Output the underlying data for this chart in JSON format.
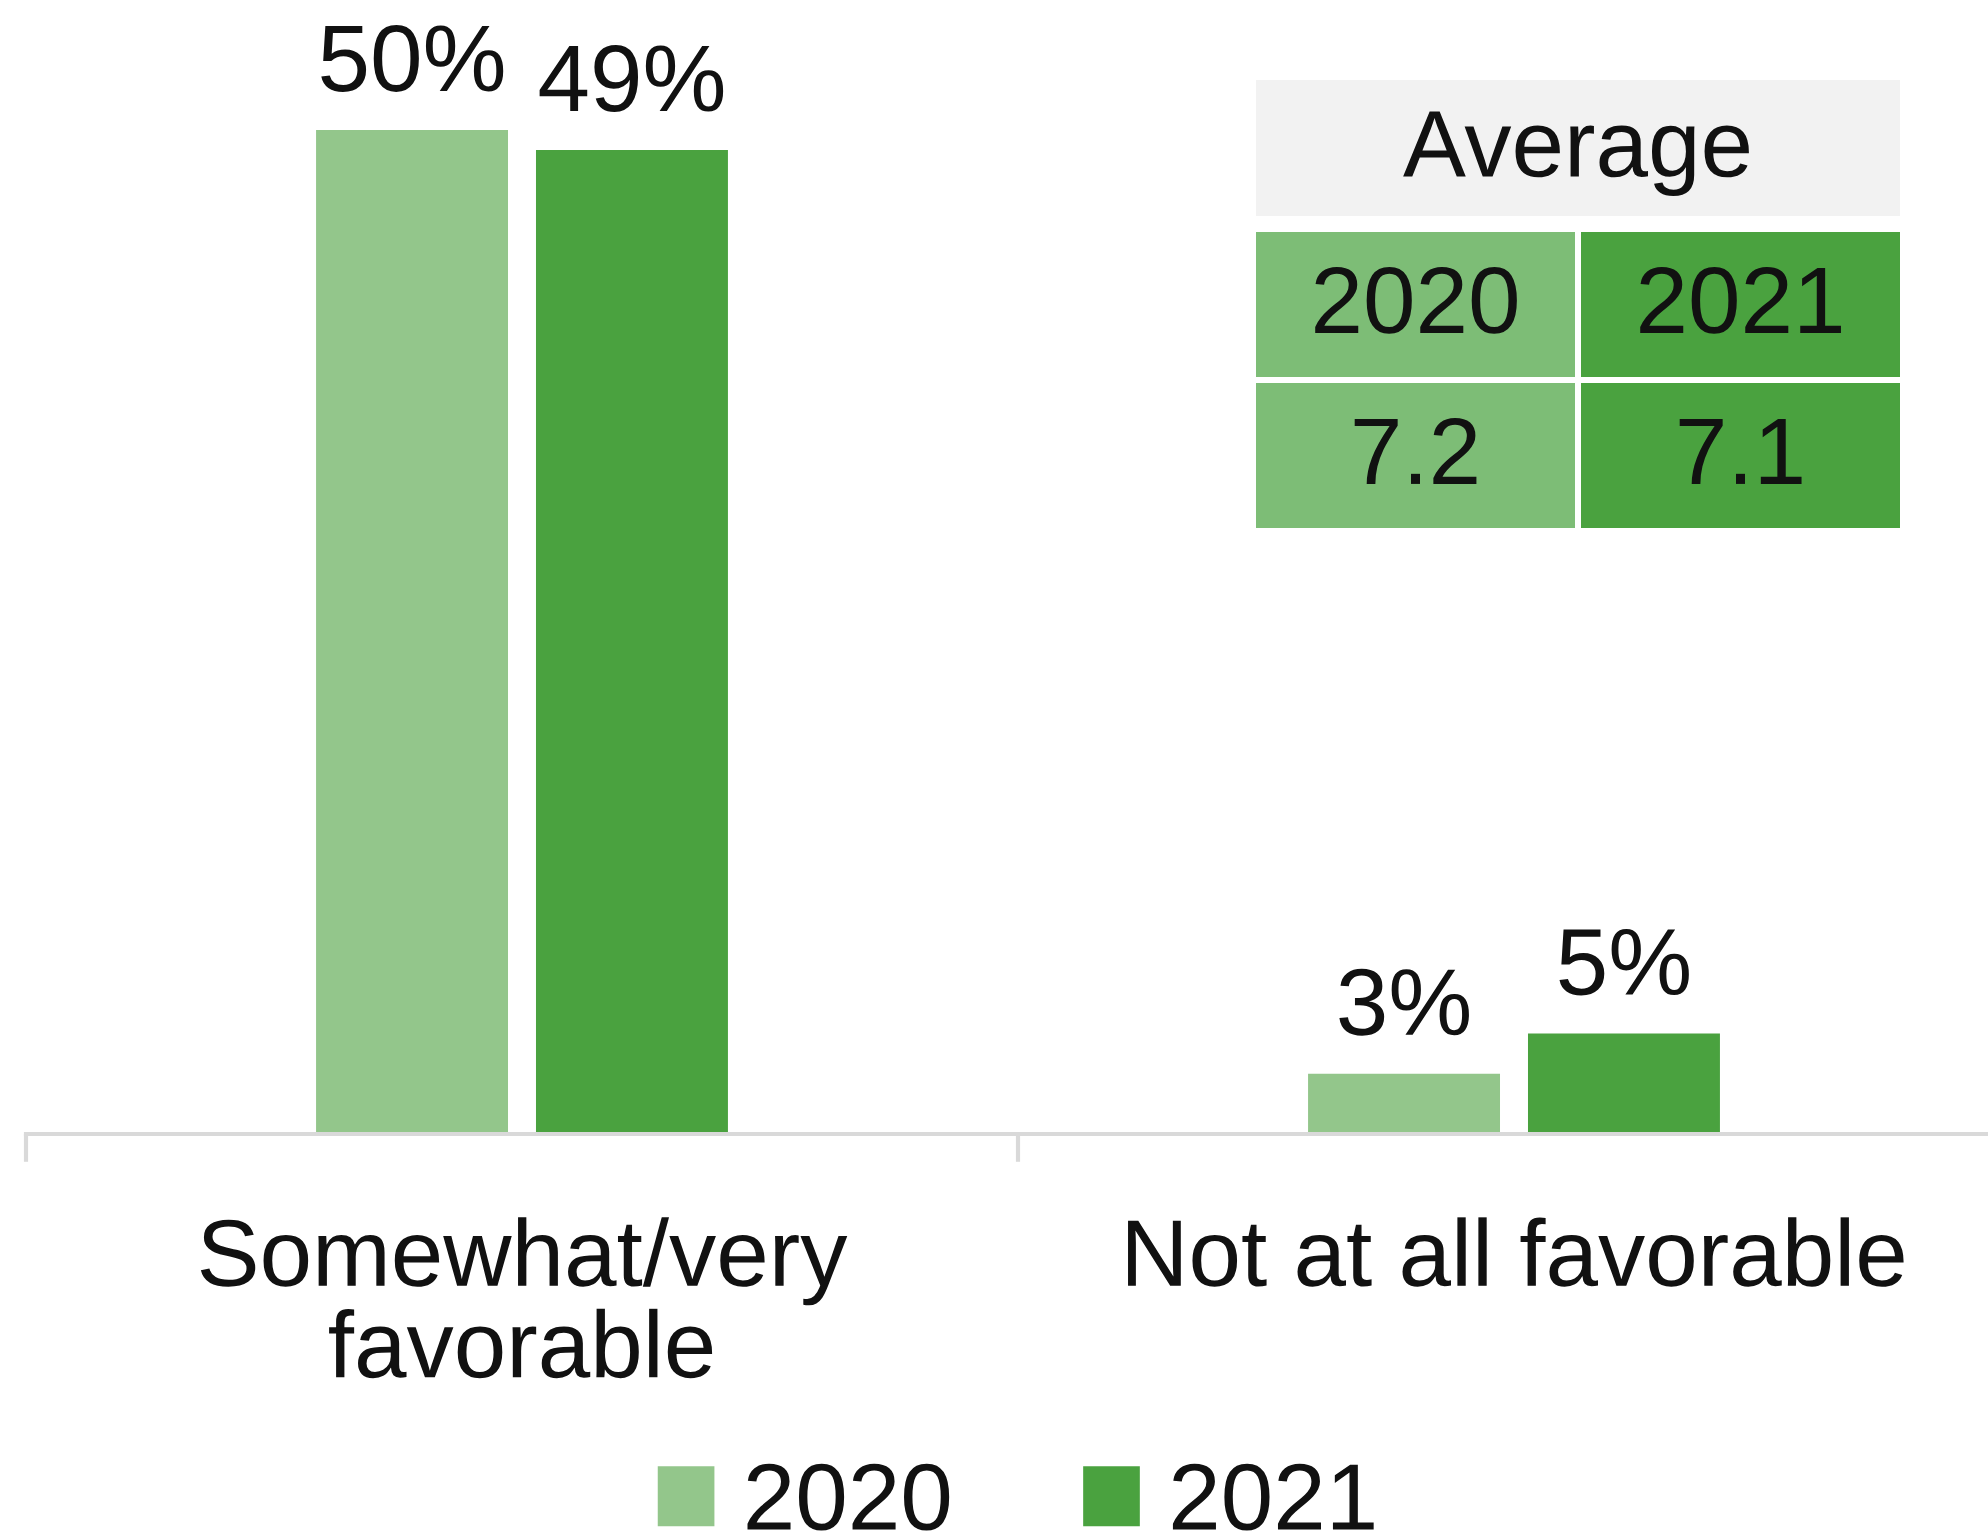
{
  "chart_data": [
    {
      "type": "bar",
      "categories": [
        "Somewhat/very\nfavorable",
        "Not at all favorable"
      ],
      "series": [
        {
          "name": "2020",
          "color": "#93c68b",
          "values": [
            50,
            3
          ],
          "value_labels": [
            "50%",
            "3%"
          ]
        },
        {
          "name": "2021",
          "color": "#4aa23f",
          "values": [
            49,
            5
          ],
          "value_labels": [
            "49%",
            "5%"
          ]
        }
      ],
      "legend": "bottom"
    },
    {
      "type": "other",
      "title": "Average",
      "categories": [
        "2020",
        "2021"
      ],
      "values": [
        7.2,
        7.1
      ],
      "colors": [
        "#7dbd76",
        "#4aa23f"
      ],
      "data_labels": true
    }
  ]
}
